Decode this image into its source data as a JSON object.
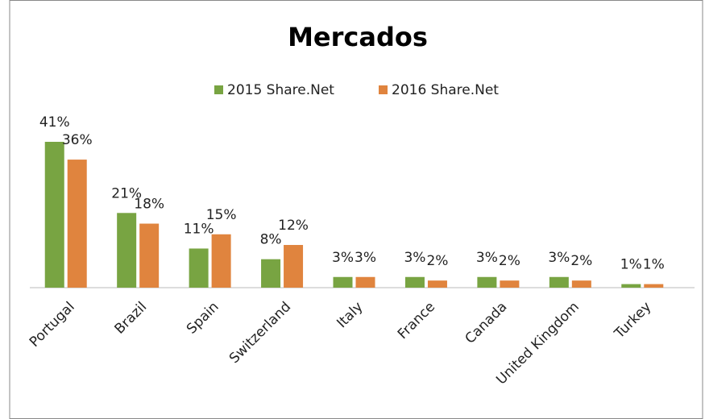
{
  "chart_data": {
    "type": "bar",
    "title": "Mercados",
    "categories": [
      "Portugal",
      "Brazil",
      "Spain",
      "Switzerland",
      "Italy",
      "France",
      "Canada",
      "United Kingdom",
      "Turkey"
    ],
    "series": [
      {
        "name": "2015 Share.Net",
        "color": "#78a442",
        "values": [
          41,
          21,
          11,
          8,
          3,
          3,
          3,
          3,
          1
        ],
        "value_labels": [
          "41%",
          "21%",
          "11%",
          "8%",
          "3%",
          "3%",
          "3%",
          "3%",
          "1%"
        ]
      },
      {
        "name": "2016 Share.Net",
        "color": "#e0843e",
        "values": [
          36,
          18,
          15,
          12,
          3,
          2,
          2,
          2,
          1
        ],
        "value_labels": [
          "36%",
          "18%",
          "15%",
          "12%",
          "3%",
          "2%",
          "2%",
          "2%",
          "1%"
        ]
      }
    ],
    "legend": "top"
  }
}
